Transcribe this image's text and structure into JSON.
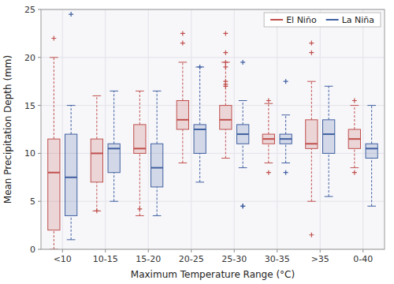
{
  "chart_data": {
    "type": "box",
    "xlabel": "Maximum Temperature Range (°C)",
    "ylabel": "Mean Precipitation Depth (mm)",
    "categories": [
      "<10",
      "10-15",
      "15-20",
      "20-25",
      "25-30",
      "30-35",
      ">35",
      "0-40"
    ],
    "series": [
      {
        "name": "El Niño",
        "color": "#c0504d",
        "values": [
          {
            "whislo": 0.0,
            "q1": 2.0,
            "med": 8.0,
            "q3": 11.5,
            "whishi": 20.0,
            "fliers": [
              22.0
            ]
          },
          {
            "whislo": 4.0,
            "q1": 7.0,
            "med": 10.0,
            "q3": 11.5,
            "whishi": 16.0,
            "fliers": [
              4.0
            ]
          },
          {
            "whislo": 3.5,
            "q1": 10.0,
            "med": 10.5,
            "q3": 13.0,
            "whishi": 16.5,
            "fliers": [
              4.2
            ]
          },
          {
            "whislo": 9.0,
            "q1": 12.5,
            "med": 13.5,
            "q3": 15.5,
            "whishi": 19.5,
            "fliers": [
              21.5,
              22.5
            ]
          },
          {
            "whislo": 9.5,
            "q1": 12.5,
            "med": 13.5,
            "q3": 15.0,
            "whishi": 19.5,
            "fliers": [
              17.0,
              17.2,
              17.5,
              19.0,
              19.5,
              20.5,
              22.5
            ]
          },
          {
            "whislo": 9.0,
            "q1": 11.0,
            "med": 11.5,
            "q3": 12.0,
            "whishi": 15.2,
            "fliers": [
              8.0,
              15.5
            ]
          },
          {
            "whislo": 5.0,
            "q1": 10.5,
            "med": 11.0,
            "q3": 13.5,
            "whishi": 17.5,
            "fliers": [
              1.5,
              20.5,
              21.5
            ]
          },
          {
            "whislo": 8.5,
            "q1": 10.5,
            "med": 11.5,
            "q3": 12.5,
            "whishi": 15.0,
            "fliers": [
              8.0,
              15.5
            ]
          }
        ]
      },
      {
        "name": "La Niña",
        "color": "#4060a0",
        "values": [
          {
            "whislo": 1.0,
            "q1": 3.5,
            "med": 7.5,
            "q3": 12.0,
            "whishi": 15.0,
            "fliers": [
              24.5
            ]
          },
          {
            "whislo": 5.0,
            "q1": 8.0,
            "med": 10.5,
            "q3": 11.0,
            "whishi": 16.5,
            "fliers": []
          },
          {
            "whislo": 3.5,
            "q1": 6.5,
            "med": 8.5,
            "q3": 11.0,
            "whishi": 16.5,
            "fliers": []
          },
          {
            "whislo": 7.0,
            "q1": 10.0,
            "med": 12.5,
            "q3": 13.0,
            "whishi": 19.0,
            "fliers": [
              19.0
            ]
          },
          {
            "whislo": 8.5,
            "q1": 11.0,
            "med": 12.0,
            "q3": 13.0,
            "whishi": 15.5,
            "fliers": [
              19.5,
              4.5,
              4.5
            ]
          },
          {
            "whislo": 9.0,
            "q1": 11.0,
            "med": 11.5,
            "q3": 12.0,
            "whishi": 14.0,
            "fliers": [
              8.0,
              17.5
            ]
          },
          {
            "whislo": 5.5,
            "q1": 10.0,
            "med": 12.0,
            "q3": 13.5,
            "whishi": 17.0,
            "fliers": []
          },
          {
            "whislo": 4.5,
            "q1": 9.5,
            "med": 10.5,
            "q3": 11.0,
            "whishi": 15.0,
            "fliers": []
          }
        ]
      }
    ],
    "ylim": [
      0,
      25
    ],
    "yticks": [
      0,
      5,
      10,
      15,
      20,
      25
    ],
    "grid": true,
    "legend": "upper right"
  }
}
